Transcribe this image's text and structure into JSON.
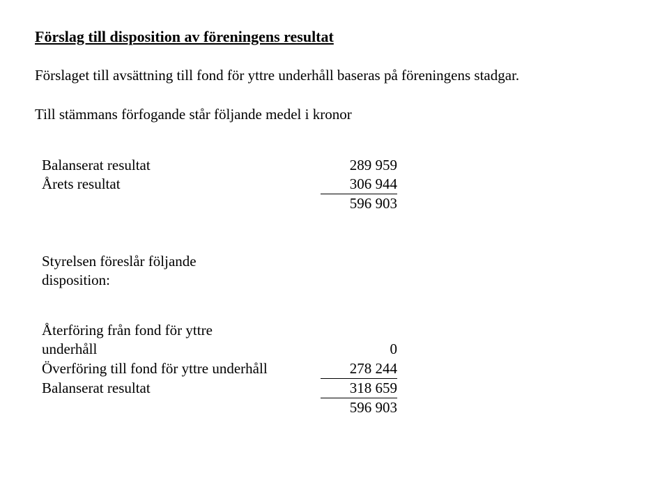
{
  "title": "Förslag till disposition av föreningens resultat",
  "paragraph1": "Förslaget till avsättning till fond för yttre underhåll baseras på föreningens stadgar.",
  "paragraph2": "Till stämmans förfogande står följande medel i kronor",
  "table1": {
    "rows": [
      {
        "label": "Balanserat resultat",
        "value": "289 959",
        "underline": false
      },
      {
        "label": "Årets resultat",
        "value": "306 944",
        "underline": true
      },
      {
        "label": "",
        "value": "596 903",
        "underline": false
      }
    ]
  },
  "subheading_line1": "Styrelsen föreslår följande",
  "subheading_line2": "disposition:",
  "table2": {
    "rows": [
      {
        "label": "Återföring från fond för yttre",
        "value": "",
        "underline": false
      },
      {
        "label": "underhåll",
        "value": "0",
        "underline": false
      },
      {
        "label": "Överföring till fond för yttre underhåll",
        "value": "278 244",
        "underline": true
      },
      {
        "label": "Balanserat resultat",
        "value": "318 659",
        "underline": true
      },
      {
        "label": "",
        "value": "596 903",
        "underline": false
      }
    ]
  }
}
